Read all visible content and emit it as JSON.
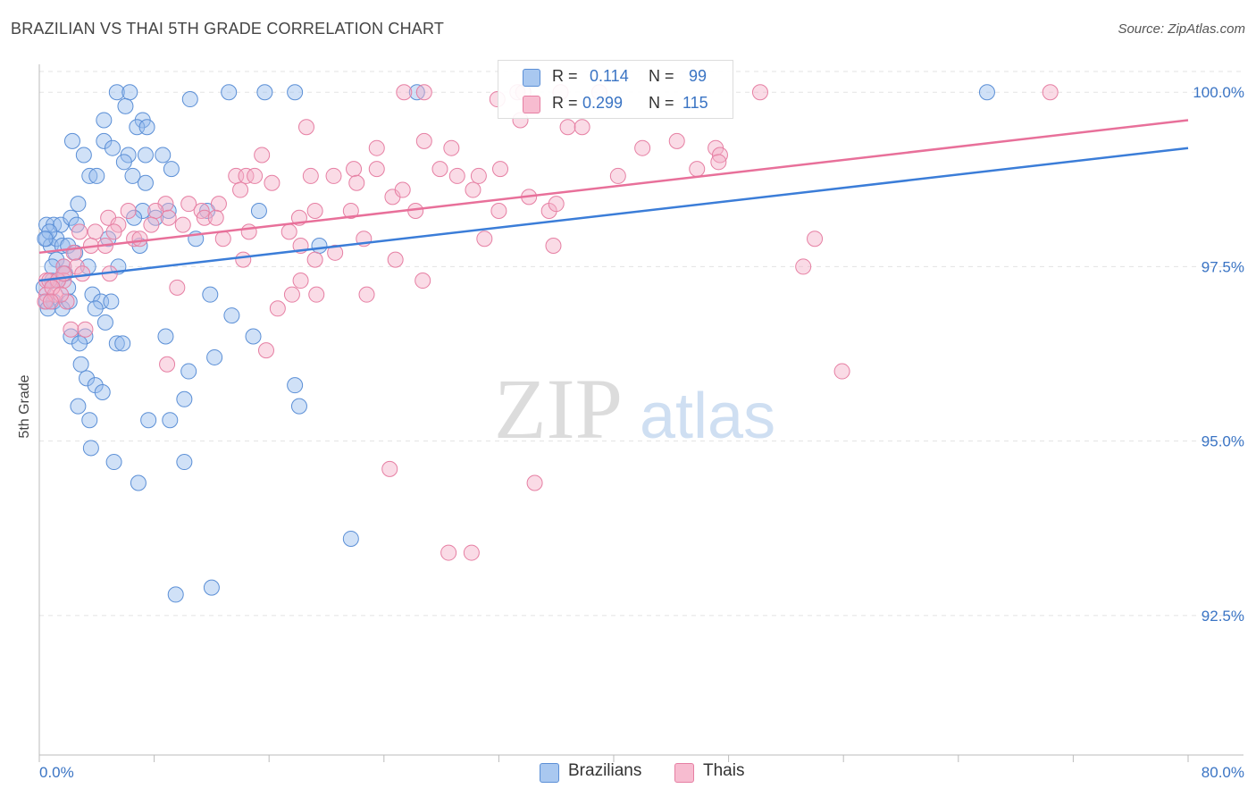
{
  "header": {
    "title": "BRAZILIAN VS THAI 5TH GRADE CORRELATION CHART",
    "source": "Source: ZipAtlas.com"
  },
  "watermark": {
    "zip": "ZIP",
    "atlas": "atlas"
  },
  "legend": {
    "r_label": "R =",
    "n_label": "N =",
    "series": [
      {
        "name": "Brazilians",
        "r": "0.114",
        "n": "99",
        "fill": "#a9c8f0",
        "stroke": "#5b8fd6"
      },
      {
        "name": "Thais",
        "r": "0.299",
        "n": "115",
        "fill": "#f7bcd0",
        "stroke": "#e67fa3"
      }
    ]
  },
  "chart_data": {
    "type": "scatter",
    "title": "BRAZILIAN VS THAI 5TH GRADE CORRELATION CHART",
    "xlabel": "",
    "ylabel": "5th Grade",
    "xlim": [
      0,
      80
    ],
    "ylim": [
      90.5,
      100.4
    ],
    "x_tick_labels": [
      "0.0%",
      "80.0%"
    ],
    "y_ticks": [
      92.5,
      95.0,
      97.5,
      100.0
    ],
    "y_tick_labels": [
      "92.5%",
      "95.0%",
      "97.5%",
      "100.0%"
    ],
    "grid": true,
    "colors": {
      "brazilians": "#3b7dd8",
      "thais": "#e8709a",
      "tick_text": "#3a74c4",
      "grid": "#e3e3e3"
    },
    "trendlines": [
      {
        "series": "Brazilians",
        "x": [
          0,
          80
        ],
        "y": [
          97.3,
          99.2
        ]
      },
      {
        "series": "Thais",
        "x": [
          0,
          80
        ],
        "y": [
          97.7,
          99.6
        ]
      }
    ],
    "series": [
      {
        "name": "Brazilians",
        "points": [
          [
            5.4,
            100
          ],
          [
            6.3,
            100
          ],
          [
            10.5,
            99.9
          ],
          [
            13.2,
            100
          ],
          [
            15.7,
            100
          ],
          [
            17.8,
            100
          ],
          [
            26.3,
            100
          ],
          [
            66,
            100
          ],
          [
            6,
            99.8
          ],
          [
            4.5,
            99.6
          ],
          [
            7.2,
            99.6
          ],
          [
            6.8,
            99.5
          ],
          [
            7.5,
            99.5
          ],
          [
            2.3,
            99.3
          ],
          [
            4.5,
            99.3
          ],
          [
            5.1,
            99.2
          ],
          [
            3.1,
            99.1
          ],
          [
            6.2,
            99.1
          ],
          [
            7.4,
            99.1
          ],
          [
            8.6,
            99.1
          ],
          [
            5.9,
            99
          ],
          [
            9.2,
            98.9
          ],
          [
            3.5,
            98.8
          ],
          [
            4,
            98.8
          ],
          [
            6.5,
            98.8
          ],
          [
            7.4,
            98.7
          ],
          [
            0.5,
            98.1
          ],
          [
            1,
            98.1
          ],
          [
            1.5,
            98.1
          ],
          [
            2.2,
            98.2
          ],
          [
            2.7,
            98.4
          ],
          [
            7.2,
            98.3
          ],
          [
            8.1,
            98.2
          ],
          [
            9,
            98.3
          ],
          [
            11.7,
            98.3
          ],
          [
            15.3,
            98.3
          ],
          [
            6.6,
            98.2
          ],
          [
            0.5,
            97.9
          ],
          [
            0.8,
            97.8
          ],
          [
            1.2,
            97.9
          ],
          [
            1.6,
            97.8
          ],
          [
            2,
            97.8
          ],
          [
            2.6,
            98.1
          ],
          [
            4.8,
            97.9
          ],
          [
            7,
            97.8
          ],
          [
            10.9,
            97.9
          ],
          [
            19.5,
            97.8
          ],
          [
            1.2,
            97.6
          ],
          [
            1.7,
            97.5
          ],
          [
            2.5,
            97.7
          ],
          [
            3.4,
            97.5
          ],
          [
            5.5,
            97.5
          ],
          [
            0.9,
            97.3
          ],
          [
            1.8,
            97.4
          ],
          [
            2,
            97.2
          ],
          [
            0.5,
            97
          ],
          [
            1,
            97
          ],
          [
            1.6,
            96.9
          ],
          [
            3.7,
            97.1
          ],
          [
            4.3,
            97
          ],
          [
            5,
            97
          ],
          [
            3.9,
            96.9
          ],
          [
            11.9,
            97.1
          ],
          [
            13.4,
            96.8
          ],
          [
            2.2,
            96.5
          ],
          [
            3.2,
            96.5
          ],
          [
            4.6,
            96.7
          ],
          [
            8.8,
            96.5
          ],
          [
            14.9,
            96.5
          ],
          [
            2.8,
            96.4
          ],
          [
            5.4,
            96.4
          ],
          [
            5.8,
            96.4
          ],
          [
            12.2,
            96.2
          ],
          [
            2.9,
            96.1
          ],
          [
            3.3,
            95.9
          ],
          [
            3.9,
            95.8
          ],
          [
            4.4,
            95.7
          ],
          [
            10.4,
            96
          ],
          [
            17.8,
            95.8
          ],
          [
            2.7,
            95.5
          ],
          [
            3.5,
            95.3
          ],
          [
            7.6,
            95.3
          ],
          [
            9.1,
            95.3
          ],
          [
            10.1,
            95.6
          ],
          [
            18.1,
            95.5
          ],
          [
            3.6,
            94.9
          ],
          [
            5.2,
            94.7
          ],
          [
            10.1,
            94.7
          ],
          [
            6.9,
            94.4
          ],
          [
            21.7,
            93.6
          ],
          [
            9.5,
            92.8
          ],
          [
            12,
            92.9
          ],
          [
            0.7,
            98
          ],
          [
            0.4,
            97.9
          ],
          [
            0.9,
            97.5
          ],
          [
            1.3,
            97.3
          ],
          [
            2.1,
            97
          ],
          [
            0.3,
            97.2
          ],
          [
            0.6,
            96.9
          ]
        ]
      },
      {
        "name": "Thais",
        "points": [
          [
            25.4,
            100
          ],
          [
            26.8,
            100
          ],
          [
            33.3,
            100
          ],
          [
            33.7,
            100
          ],
          [
            36.3,
            100
          ],
          [
            39,
            100
          ],
          [
            50.2,
            100
          ],
          [
            70.4,
            100
          ],
          [
            31.9,
            99.9
          ],
          [
            33.5,
            99.6
          ],
          [
            36.8,
            99.5
          ],
          [
            37.8,
            99.5
          ],
          [
            18.6,
            99.5
          ],
          [
            26.8,
            99.3
          ],
          [
            23.5,
            99.2
          ],
          [
            28.7,
            99.2
          ],
          [
            42,
            99.2
          ],
          [
            44.4,
            99.3
          ],
          [
            47.1,
            99.2
          ],
          [
            47.4,
            99.1
          ],
          [
            15.5,
            99.1
          ],
          [
            21.9,
            98.9
          ],
          [
            23.5,
            98.9
          ],
          [
            27.9,
            98.9
          ],
          [
            32.1,
            98.9
          ],
          [
            45.8,
            98.9
          ],
          [
            47.3,
            99
          ],
          [
            29.1,
            98.8
          ],
          [
            18.9,
            98.8
          ],
          [
            13.7,
            98.8
          ],
          [
            14.4,
            98.8
          ],
          [
            15,
            98.8
          ],
          [
            20.5,
            98.8
          ],
          [
            22.1,
            98.7
          ],
          [
            30.2,
            98.6
          ],
          [
            30.6,
            98.8
          ],
          [
            40.3,
            98.8
          ],
          [
            34.1,
            98.5
          ],
          [
            14,
            98.6
          ],
          [
            16.2,
            98.7
          ],
          [
            24.6,
            98.5
          ],
          [
            25.3,
            98.6
          ],
          [
            35.5,
            98.3
          ],
          [
            36,
            98.4
          ],
          [
            12.5,
            98.4
          ],
          [
            10.4,
            98.4
          ],
          [
            11.3,
            98.3
          ],
          [
            8.8,
            98.4
          ],
          [
            9,
            98.2
          ],
          [
            8.1,
            98.3
          ],
          [
            6.2,
            98.3
          ],
          [
            4.8,
            98.2
          ],
          [
            11.5,
            98.2
          ],
          [
            12.3,
            98.2
          ],
          [
            18.1,
            98.2
          ],
          [
            19.2,
            98.3
          ],
          [
            21.7,
            98.3
          ],
          [
            26.2,
            98.3
          ],
          [
            32,
            98.3
          ],
          [
            5.5,
            98.1
          ],
          [
            7.8,
            98.1
          ],
          [
            10,
            98.1
          ],
          [
            14.6,
            98
          ],
          [
            17.4,
            98
          ],
          [
            2.8,
            98
          ],
          [
            3.9,
            98
          ],
          [
            5.2,
            98
          ],
          [
            6.6,
            97.9
          ],
          [
            7,
            97.9
          ],
          [
            12.8,
            97.9
          ],
          [
            18.2,
            97.8
          ],
          [
            22.6,
            97.9
          ],
          [
            31,
            97.9
          ],
          [
            35.8,
            97.8
          ],
          [
            54,
            97.9
          ],
          [
            3.6,
            97.8
          ],
          [
            4.6,
            97.8
          ],
          [
            2.4,
            97.7
          ],
          [
            14.2,
            97.6
          ],
          [
            19.2,
            97.6
          ],
          [
            20.6,
            97.7
          ],
          [
            24.8,
            97.6
          ],
          [
            53.2,
            97.5
          ],
          [
            1.7,
            97.5
          ],
          [
            2.6,
            97.5
          ],
          [
            4.9,
            97.4
          ],
          [
            0.5,
            97.3
          ],
          [
            1.7,
            97.3
          ],
          [
            3,
            97.4
          ],
          [
            18.2,
            97.3
          ],
          [
            26.7,
            97.3
          ],
          [
            9.6,
            97.2
          ],
          [
            17.6,
            97.1
          ],
          [
            19.3,
            97.1
          ],
          [
            22.8,
            97.1
          ],
          [
            0.5,
            97.1
          ],
          [
            1.9,
            97
          ],
          [
            16.6,
            96.9
          ],
          [
            2.2,
            96.6
          ],
          [
            3.2,
            96.6
          ],
          [
            8.9,
            96.1
          ],
          [
            15.8,
            96.3
          ],
          [
            55.9,
            96
          ],
          [
            24.4,
            94.6
          ],
          [
            34.5,
            94.4
          ],
          [
            28.5,
            93.4
          ],
          [
            30.1,
            93.4
          ],
          [
            0.7,
            97.3
          ],
          [
            1.1,
            97.1
          ],
          [
            0.4,
            97
          ],
          [
            1.3,
            97.3
          ],
          [
            1.7,
            97.4
          ],
          [
            0.9,
            97.2
          ],
          [
            1.5,
            97.1
          ],
          [
            0.8,
            97
          ]
        ]
      }
    ]
  }
}
